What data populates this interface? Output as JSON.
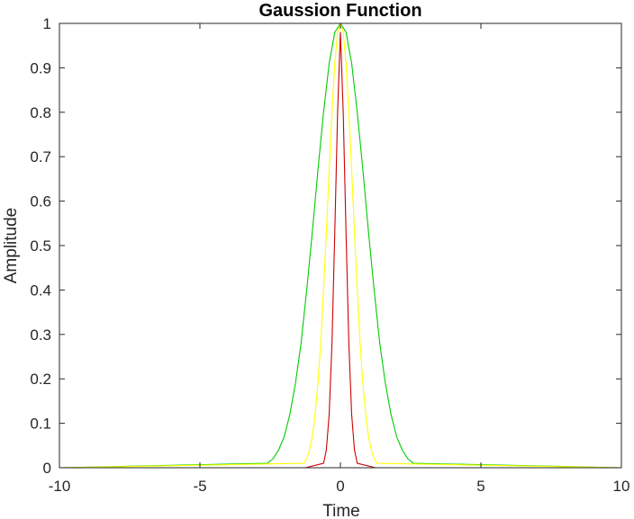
{
  "chart_data": {
    "type": "line",
    "title": "Gaussion Function",
    "xlabel": "Time",
    "ylabel": "Amplitude",
    "xlim": [
      -10,
      10
    ],
    "ylim": [
      0,
      1
    ],
    "x_ticks": [
      -10,
      -5,
      0,
      5,
      10
    ],
    "x_tick_labels": [
      "-10",
      "-5",
      "0",
      "5",
      "10"
    ],
    "y_ticks": [
      0,
      0.1,
      0.2,
      0.3,
      0.4,
      0.5,
      0.6,
      0.7,
      0.8,
      0.9,
      1
    ],
    "y_tick_labels": [
      "0",
      "0.1",
      "0.2",
      "0.3",
      "0.4",
      "0.5",
      "0.6",
      "0.7",
      "0.8",
      "0.9",
      "1"
    ],
    "grid": false,
    "box": true,
    "series": [
      {
        "color": "#00cc00",
        "x": [
          -10,
          -2.6,
          -2.4,
          -2.2,
          -2.0,
          -1.8,
          -1.6,
          -1.4,
          -1.2,
          -1.0,
          -0.8,
          -0.6,
          -0.4,
          -0.2,
          0,
          0.2,
          0.4,
          0.6,
          0.8,
          1.0,
          1.2,
          1.4,
          1.6,
          1.8,
          2.0,
          2.2,
          2.4,
          2.6,
          10
        ],
        "y": [
          0,
          0.01,
          0.02,
          0.04,
          0.07,
          0.12,
          0.19,
          0.28,
          0.4,
          0.53,
          0.67,
          0.8,
          0.91,
          0.98,
          1.0,
          0.98,
          0.91,
          0.8,
          0.67,
          0.53,
          0.4,
          0.28,
          0.19,
          0.12,
          0.07,
          0.04,
          0.02,
          0.01,
          0
        ]
      },
      {
        "color": "#ffff00",
        "x": [
          -10,
          -1.3,
          -1.2,
          -1.1,
          -1.0,
          -0.9,
          -0.8,
          -0.7,
          -0.6,
          -0.5,
          -0.4,
          -0.3,
          -0.2,
          -0.1,
          0,
          0.1,
          0.2,
          0.3,
          0.4,
          0.5,
          0.6,
          0.7,
          0.8,
          0.9,
          1.0,
          1.1,
          1.2,
          1.3,
          10
        ],
        "y": [
          0,
          0.01,
          0.02,
          0.04,
          0.07,
          0.12,
          0.19,
          0.28,
          0.4,
          0.53,
          0.67,
          0.8,
          0.91,
          0.98,
          1.0,
          0.98,
          0.91,
          0.8,
          0.67,
          0.53,
          0.4,
          0.28,
          0.19,
          0.12,
          0.07,
          0.04,
          0.02,
          0.01,
          0
        ]
      },
      {
        "color": "#cc0000",
        "x": [
          -1.25,
          -0.6,
          -0.5,
          -0.4,
          -0.3,
          -0.2,
          -0.1,
          0,
          0.1,
          0.2,
          0.3,
          0.4,
          0.5,
          0.6,
          1.25
        ],
        "y": [
          0,
          0.01,
          0.04,
          0.12,
          0.28,
          0.53,
          0.8,
          0.98,
          0.8,
          0.53,
          0.28,
          0.12,
          0.04,
          0.01,
          0
        ]
      }
    ]
  }
}
